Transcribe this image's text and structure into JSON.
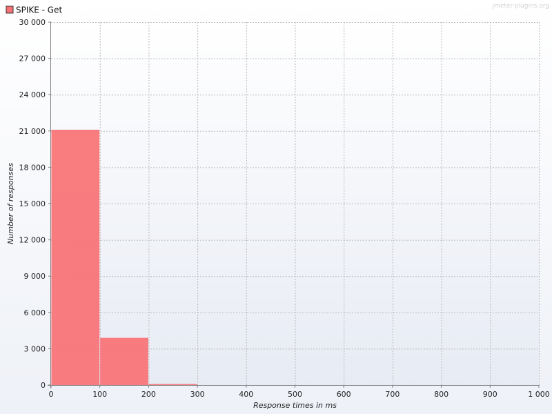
{
  "watermark": "jmeter-plugins.org",
  "legend": {
    "items": [
      {
        "label": "SPIKE - Get",
        "color": "#f87174"
      }
    ],
    "placement": "top-left"
  },
  "chart_data": {
    "type": "bar",
    "title": "",
    "xlabel": "Response times in ms",
    "ylabel": "Number of responses",
    "xlim": [
      0,
      1000
    ],
    "ylim": [
      0,
      30000
    ],
    "grid": true,
    "bin_width": 100,
    "x_ticks": [
      {
        "value": 0,
        "label": "0"
      },
      {
        "value": 100,
        "label": "100"
      },
      {
        "value": 200,
        "label": "200"
      },
      {
        "value": 300,
        "label": "300"
      },
      {
        "value": 400,
        "label": "400"
      },
      {
        "value": 500,
        "label": "500"
      },
      {
        "value": 600,
        "label": "600"
      },
      {
        "value": 700,
        "label": "700"
      },
      {
        "value": 800,
        "label": "800"
      },
      {
        "value": 900,
        "label": "900"
      },
      {
        "value": 1000,
        "label": "1 000"
      }
    ],
    "y_ticks": [
      {
        "value": 0,
        "label": "0"
      },
      {
        "value": 3000,
        "label": "3 000"
      },
      {
        "value": 6000,
        "label": "6 000"
      },
      {
        "value": 9000,
        "label": "9 000"
      },
      {
        "value": 12000,
        "label": "12 000"
      },
      {
        "value": 15000,
        "label": "15 000"
      },
      {
        "value": 18000,
        "label": "18 000"
      },
      {
        "value": 21000,
        "label": "21 000"
      },
      {
        "value": 24000,
        "label": "24 000"
      },
      {
        "value": 27000,
        "label": "27 000"
      },
      {
        "value": 30000,
        "label": "30 000"
      }
    ],
    "series": [
      {
        "name": "SPIKE - Get",
        "color": "#f87174",
        "bins": [
          {
            "x_start": 0,
            "x_end": 100,
            "value": 21100
          },
          {
            "x_start": 100,
            "x_end": 200,
            "value": 3900
          },
          {
            "x_start": 200,
            "x_end": 300,
            "value": 80
          }
        ]
      }
    ]
  }
}
